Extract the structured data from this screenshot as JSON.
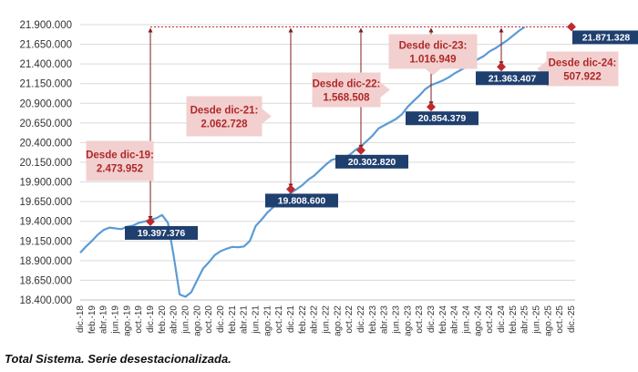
{
  "caption": "Total Sistema. Serie desestacionalizada.",
  "chart_data": {
    "type": "line",
    "title": "",
    "xlabel": "",
    "ylabel": "",
    "ylim": [
      18400000,
      21900000
    ],
    "yticks": [
      "18.400.000",
      "18.650.000",
      "18.900.000",
      "19.150.000",
      "19.400.000",
      "19.650.000",
      "19.900.000",
      "20.150.000",
      "20.400.000",
      "20.650.000",
      "20.900.000",
      "21.150.000",
      "21.400.000",
      "21.650.000",
      "21.900.000"
    ],
    "ytick_values": [
      18400000,
      18650000,
      18900000,
      19150000,
      19400000,
      19650000,
      19900000,
      20150000,
      20400000,
      20650000,
      20900000,
      21150000,
      21400000,
      21650000,
      21900000
    ],
    "xticks": [
      "dic.-18",
      "feb.-19",
      "abr.-19",
      "jun.-19",
      "ago.-19",
      "oct.-19",
      "dic.-19",
      "feb.-20",
      "abr.-20",
      "jun.-20",
      "ago.-20",
      "oct.-20",
      "dic.-20",
      "feb.-21",
      "abr.-21",
      "jun.-21",
      "ago.-21",
      "oct.-21",
      "dic.-21",
      "feb.-22",
      "abr.-22",
      "jun.-22",
      "ago.-22",
      "oct.-22",
      "dic.-22",
      "feb.-23",
      "abr.-23",
      "jun.-23",
      "ago.-23",
      "oct.-23",
      "dic.-23",
      "feb.-24",
      "abr.-24",
      "jun.-24",
      "ago.-24",
      "oct.-24",
      "dic.-24",
      "feb.-25",
      "abr.-25",
      "jun.-25",
      "ago.-25",
      "oct.-25",
      "dic.-25"
    ],
    "line_color": "#5b9bd5",
    "accent_color": "#c0282d",
    "series": [
      {
        "values": [
          19000000,
          19080000,
          19150000,
          19230000,
          19290000,
          19320000,
          19310000,
          19300000,
          19330000,
          19345000,
          19380000,
          19397376,
          19420000,
          19440000,
          19480000,
          19380000,
          18950000,
          18470000,
          18440000,
          18500000,
          18650000,
          18800000,
          18880000,
          18970000,
          19020000,
          19050000,
          19075000,
          19070000,
          19080000,
          19150000,
          19340000,
          19420000,
          19510000,
          19580000,
          19640000,
          19700000,
          19760000,
          19808600,
          19860000,
          19930000,
          19980000,
          20050000,
          20120000,
          20180000,
          20200000,
          20210000,
          20240000,
          20302820,
          20350000,
          20420000,
          20490000,
          20580000,
          20620000,
          20660000,
          20700000,
          20760000,
          20854379,
          20930000,
          21000000,
          21080000,
          21130000,
          21160000,
          21190000,
          21230000,
          21280000,
          21320000,
          21363407,
          21400000,
          21460000,
          21500000,
          21560000,
          21600000,
          21650000,
          21700000,
          21760000,
          21820000,
          21871328
        ]
      }
    ],
    "points": [
      {
        "label": "dic.-19",
        "value": 19397376,
        "value_label": "19.397.376"
      },
      {
        "label": "dic.-21",
        "value": 19808600,
        "value_label": "19.808.600"
      },
      {
        "label": "dic.-22",
        "value": 20302820,
        "value_label": "20.302.820"
      },
      {
        "label": "dic.-23",
        "value": 20854379,
        "value_label": "20.854.379"
      },
      {
        "label": "dic.-24",
        "value": 21363407,
        "value_label": "21.363.407"
      },
      {
        "label": "dic.-25",
        "value": 21871328,
        "value_label": "21.871.328"
      }
    ],
    "annotations": [
      {
        "from": "dic.-19",
        "line1": "Desde dic-19:",
        "line2": "2.473.952"
      },
      {
        "from": "dic.-21",
        "line1": "Desde dic-21:",
        "line2": "2.062.728"
      },
      {
        "from": "dic.-22",
        "line1": "Desde dic-22:",
        "line2": "1.568.508"
      },
      {
        "from": "dic.-23",
        "line1": "Desde dic-23:",
        "line2": "1.016.949"
      },
      {
        "from": "dic.-24",
        "line1": "Desde dic-24:",
        "line2": "507.922"
      }
    ]
  }
}
